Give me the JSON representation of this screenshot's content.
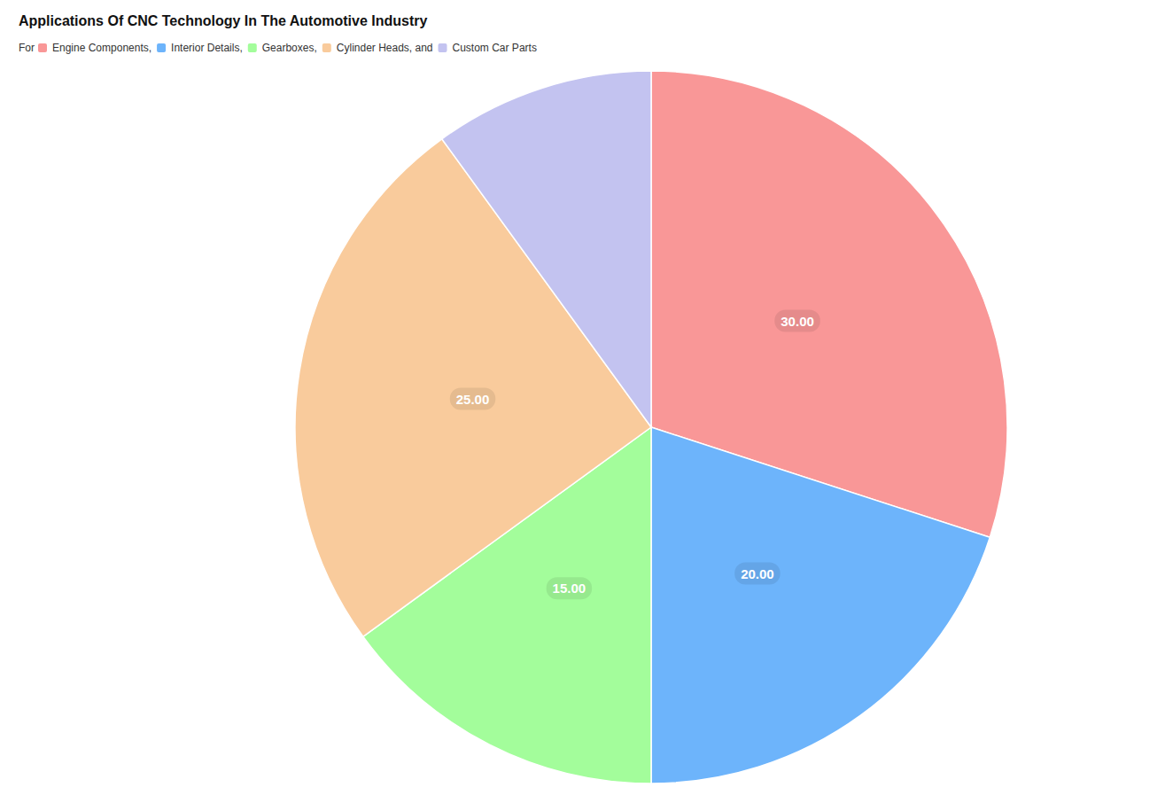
{
  "chart_data": {
    "type": "pie",
    "title": "Applications Of CNC Technology In The Automotive Industry",
    "subtitle": "For",
    "categories": [
      "Engine Components,",
      "Interior Details,",
      "Gearboxes,",
      "Cylinder Heads, and",
      "Custom Car Parts"
    ],
    "values": [
      30,
      20,
      15,
      25,
      10
    ],
    "colors": [
      "#f99797",
      "#6db4fb",
      "#a3fd9b",
      "#f9cb9c",
      "#c3c3f0"
    ],
    "data_labels": true,
    "value_labels": [
      "30.00",
      "20.00",
      "15.00",
      "25.00",
      null
    ],
    "legend": "top-left"
  }
}
